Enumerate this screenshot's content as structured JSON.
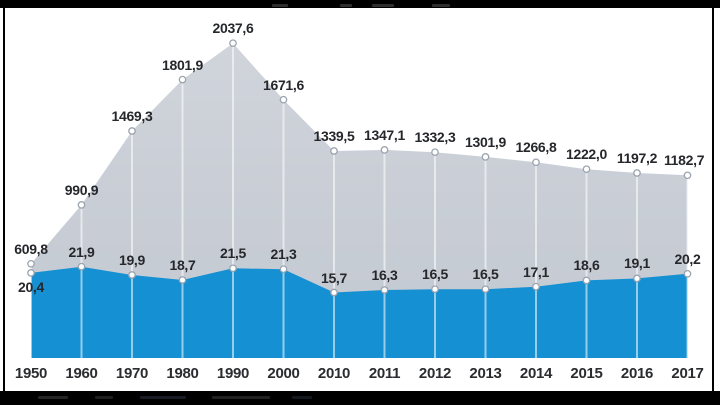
{
  "window": {
    "background": "#ffffff",
    "letterbox_color": "#000000",
    "note": "video frame with cropped illegible title strip (top) and legend strip (bottom)"
  },
  "chart_data": {
    "type": "area",
    "title": "",
    "categories": [
      "1950",
      "1960",
      "1970",
      "1980",
      "1990",
      "2000",
      "2010",
      "2011",
      "2012",
      "2013",
      "2014",
      "2015",
      "2016",
      "2017"
    ],
    "series": [
      {
        "name": "total",
        "color": "#c8cdd5",
        "values": [
          609.8,
          990.9,
          1469.3,
          1801.9,
          2037.6,
          1671.6,
          1339.5,
          1347.1,
          1332.3,
          1301.9,
          1266.8,
          1222.0,
          1197.2,
          1182.7
        ],
        "labels": [
          "609,8",
          "990,9",
          "1469,3",
          "1801,9",
          "2037,6",
          "1671,6",
          "1339,5",
          "1347,1",
          "1332,3",
          "1301,9",
          "1266,8",
          "1222,0",
          "1197,2",
          "1182,7"
        ]
      },
      {
        "name": "share",
        "color": "#1490d3",
        "values": [
          20.4,
          21.9,
          19.9,
          18.7,
          21.5,
          21.3,
          15.7,
          16.3,
          16.5,
          16.5,
          17.1,
          18.6,
          19.1,
          20.2
        ],
        "labels": [
          "20,4",
          "21,9",
          "19,9",
          "18,7",
          "21,5",
          "21,3",
          "15,7",
          "16,3",
          "16,5",
          "16,5",
          "17,1",
          "18,6",
          "19,1",
          "20,2"
        ]
      }
    ],
    "decimal_separator": ",",
    "marker": {
      "fill": "#ffffff",
      "stroke": "#9aa3ae"
    },
    "drop_line_color": "rgba(255,255,255,0.55)",
    "label_color": "#26272b",
    "axis_label_color": "#2b2c2f",
    "layout_hints": {
      "grid": false,
      "legend_position": "none",
      "y_axis_visible": false,
      "dual_scale": true,
      "shared_baseline": true,
      "xlabel": "",
      "ylabel": ""
    }
  }
}
